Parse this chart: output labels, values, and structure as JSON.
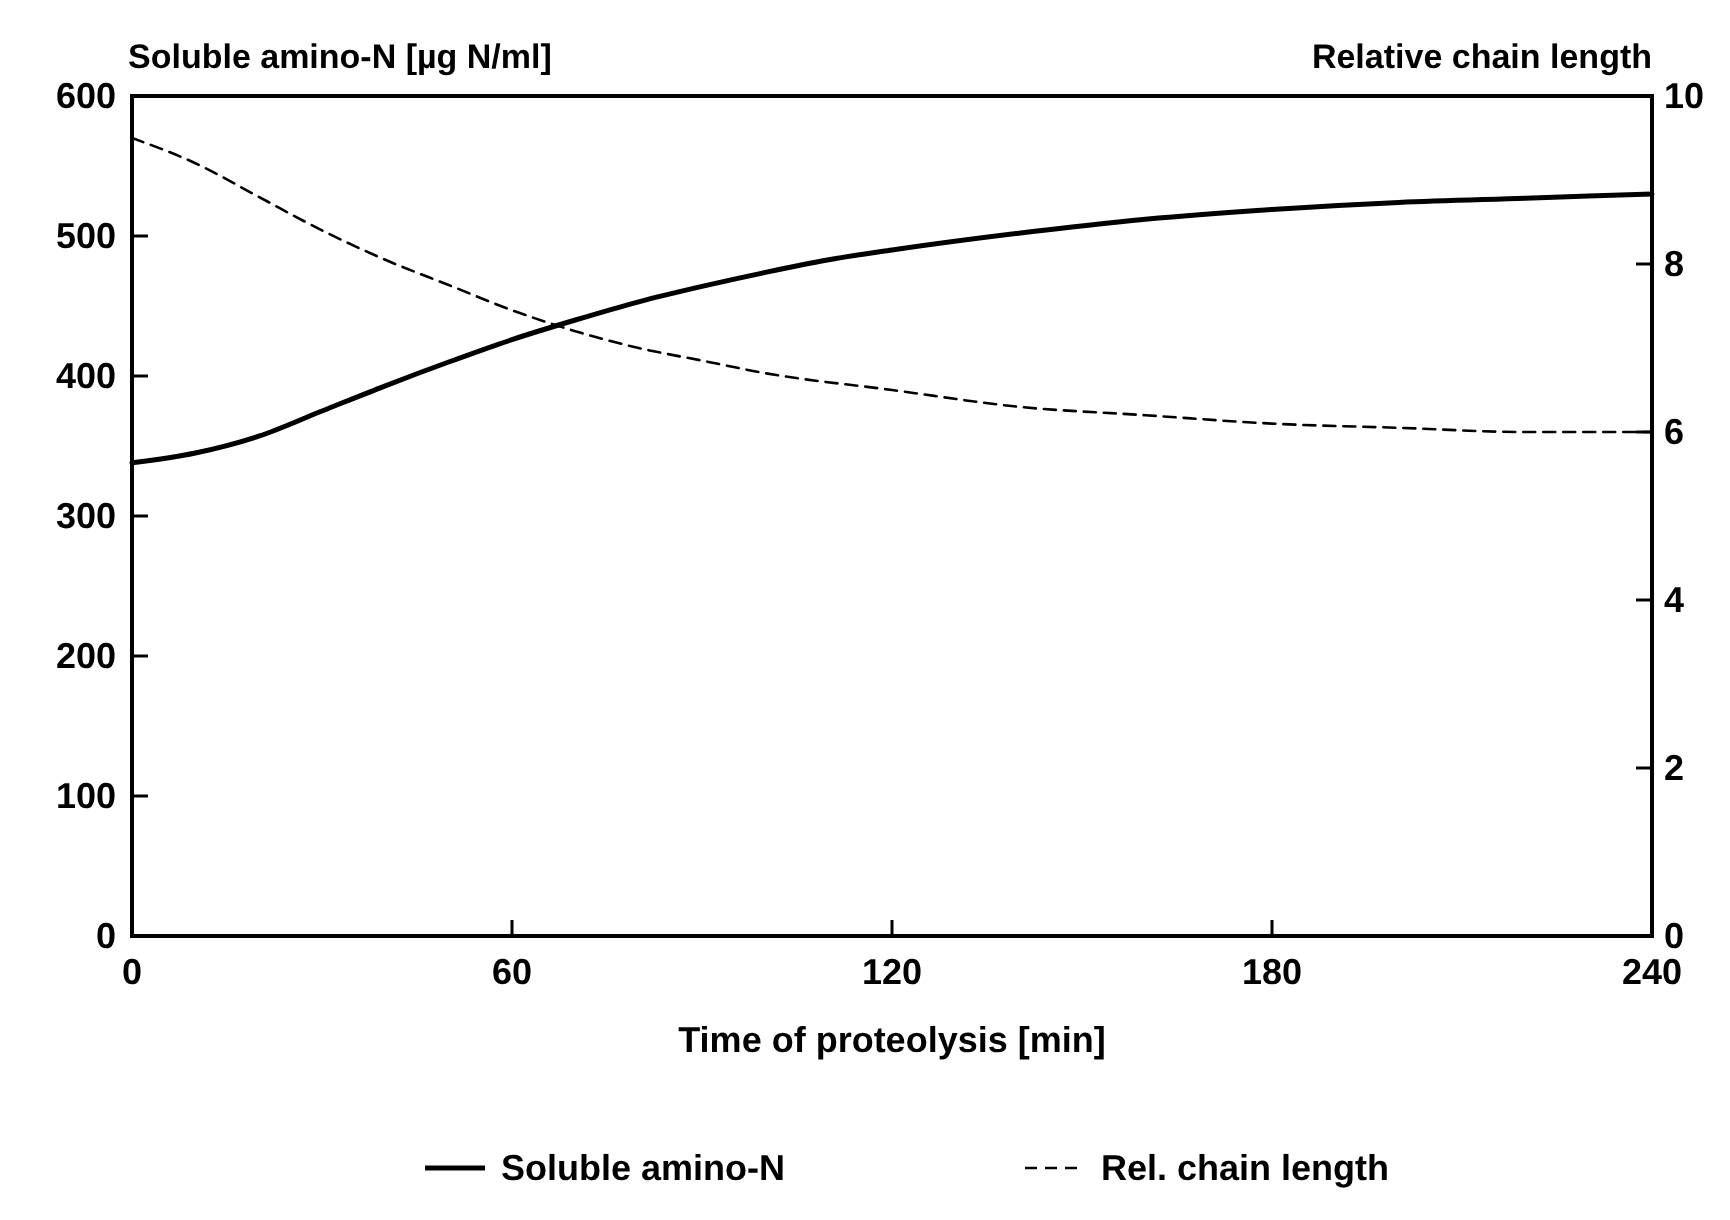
{
  "chart_data": {
    "type": "line",
    "xlabel": "Time of proteolysis [min]",
    "ylabel": "Soluble amino-N [µg N/ml]",
    "y2label": "Relative chain length",
    "xlim": [
      0,
      240
    ],
    "xticks": [
      0,
      60,
      120,
      180,
      240
    ],
    "ylim": [
      0,
      600
    ],
    "yticks": [
      0,
      100,
      200,
      300,
      400,
      500,
      600
    ],
    "y2lim": [
      0,
      10
    ],
    "y2ticks": [
      0,
      2,
      4,
      6,
      8,
      10
    ],
    "legend": "bottom",
    "grid": false,
    "series": [
      {
        "name": "Soluble amino-N",
        "color": "#000000",
        "line_style": "solid",
        "x": [
          0,
          10,
          20,
          30,
          40,
          50,
          60,
          70,
          80,
          90,
          100,
          110,
          120,
          140,
          160,
          180,
          200,
          220,
          240
        ],
        "values": [
          338,
          345,
          357,
          375,
          393,
          410,
          426,
          440,
          453,
          464,
          474,
          483,
          490,
          502,
          512,
          519,
          524,
          527,
          530
        ]
      },
      {
        "name": "Rel. chain length",
        "color": "#000000",
        "line_style": "dashed",
        "axis": "y2",
        "x": [
          0,
          10,
          20,
          30,
          40,
          50,
          60,
          70,
          80,
          90,
          100,
          120,
          140,
          160,
          180,
          200,
          220,
          240
        ],
        "values": [
          9.5,
          9.2,
          8.8,
          8.4,
          8.05,
          7.75,
          7.45,
          7.2,
          7.0,
          6.85,
          6.7,
          6.5,
          6.3,
          6.2,
          6.1,
          6.05,
          6.0,
          6.0
        ]
      }
    ]
  }
}
